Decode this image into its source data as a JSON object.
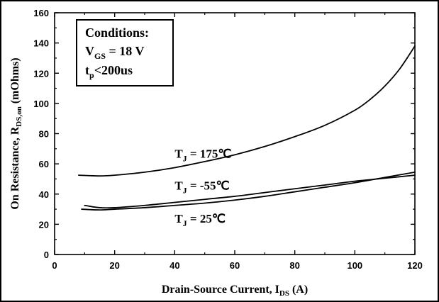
{
  "chart_data": {
    "type": "line",
    "title": "",
    "xlabel": "Drain-Source Current, I",
    "xlabel_sub": "DS",
    "xlabel_unit": "(A)",
    "ylabel": "On Resistance, R",
    "ylabel_sub": "DS,on",
    "ylabel_unit": "(mOhms)",
    "xlim": [
      0,
      120
    ],
    "ylim": [
      0,
      160
    ],
    "x_ticks": [
      "0",
      "20",
      "40",
      "60",
      "80",
      "100",
      "120"
    ],
    "y_ticks": [
      "0",
      "20",
      "40",
      "60",
      "80",
      "100",
      "120",
      "140",
      "160"
    ],
    "grid": false,
    "legend": "none",
    "line_color": "#000000",
    "series": [
      {
        "name": "T_J = 175℃",
        "x": [
          8,
          15,
          20,
          30,
          40,
          50,
          60,
          70,
          80,
          90,
          100,
          105,
          110,
          115,
          120
        ],
        "y": [
          52.5,
          52,
          52.5,
          54.5,
          57.5,
          61.5,
          66,
          71.5,
          78,
          85.5,
          95.5,
          102.5,
          111.5,
          123,
          138
        ]
      },
      {
        "name": "T_J = -55℃",
        "x": [
          10,
          15,
          20,
          30,
          40,
          50,
          60,
          70,
          80,
          90,
          100,
          110,
          120
        ],
        "y": [
          32.5,
          31,
          31,
          32.5,
          34.5,
          36.5,
          38.5,
          41,
          43.5,
          46,
          48.5,
          50.5,
          52.5
        ]
      },
      {
        "name": "T_J = 25℃",
        "x": [
          9,
          15,
          20,
          30,
          40,
          50,
          60,
          70,
          80,
          90,
          100,
          110,
          120
        ],
        "y": [
          30,
          29.5,
          30,
          31,
          32.5,
          34,
          36,
          38.5,
          41.5,
          44.5,
          47.5,
          51,
          54.5
        ]
      }
    ],
    "annotations": [
      {
        "main": "T",
        "sub": "J",
        "rest": " = 175℃",
        "x": 40,
        "y": 64
      },
      {
        "main": "T",
        "sub": "J",
        "rest": " = -55℃",
        "x": 40,
        "y": 43
      },
      {
        "main": "T",
        "sub": "J",
        "rest": " = 25℃",
        "x": 40,
        "y": 21
      }
    ],
    "conditions": {
      "heading": "Conditions:",
      "line1_main": "V",
      "line1_sub": "GS",
      "line1_rest": " = 18 V",
      "line2_main": "t",
      "line2_sub": "p",
      "line2_rest": "<200us"
    }
  }
}
